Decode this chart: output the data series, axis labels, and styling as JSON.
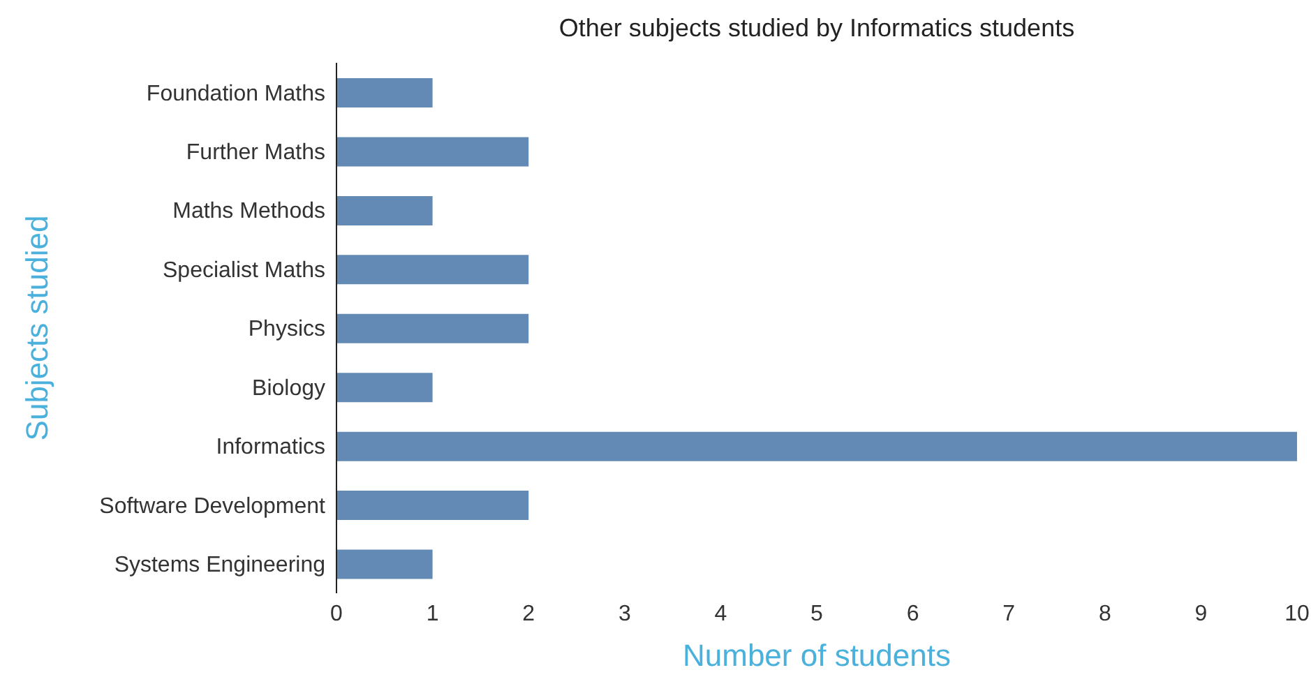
{
  "chart_data": {
    "type": "bar",
    "orientation": "horizontal",
    "title": "Other subjects studied by Informatics students",
    "xlabel": "Number of students",
    "ylabel": "Subjects studied",
    "categories": [
      "Foundation Maths",
      "Further Maths",
      "Maths Methods",
      "Specialist Maths",
      "Physics",
      "Biology",
      "Informatics",
      "Software Development",
      "Systems Engineering"
    ],
    "values": [
      1,
      2,
      1,
      2,
      2,
      1,
      10,
      2,
      1
    ],
    "color": "#6389b5",
    "xlim": [
      0,
      10
    ],
    "xticks": [
      0,
      1,
      2,
      3,
      4,
      5,
      6,
      7,
      8,
      9,
      10
    ],
    "grid": false,
    "legend": false
  }
}
